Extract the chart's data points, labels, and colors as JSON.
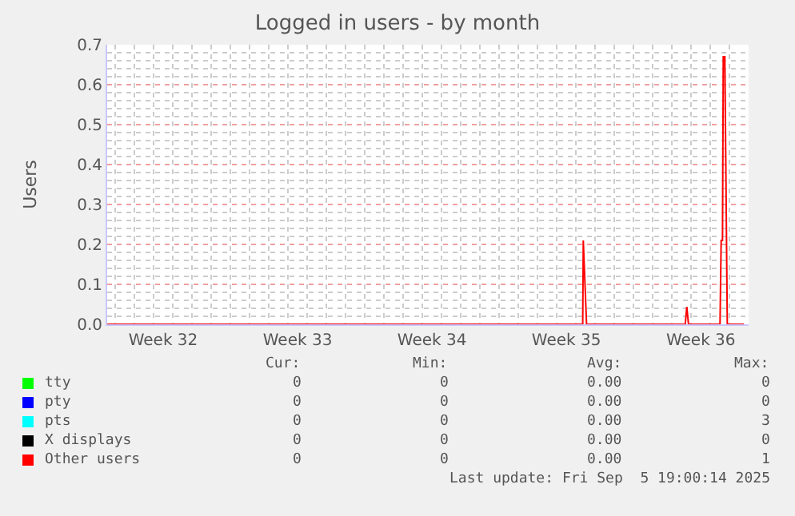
{
  "chart_data": {
    "type": "line",
    "title": "Logged in users - by month",
    "ylabel": "Users",
    "x": [
      "2025-08-03T14:00",
      "2025-08-28T08:24",
      "2025-08-28T09:07",
      "2025-08-28T13:12",
      "2025-09-02T16:34",
      "2025-09-02T18:29",
      "2025-09-02T20:38",
      "2025-09-04T12:00",
      "2025-09-04T13:26",
      "2025-09-04T15:07",
      "2025-09-04T16:05",
      "2025-09-04T18:00",
      "2025-09-04T21:07",
      "2025-09-05T18:00"
    ],
    "series": [
      {
        "name": "tty",
        "color": "#00ff00",
        "values": [
          null,
          null,
          null,
          null,
          null,
          null,
          null,
          null,
          null,
          null,
          null,
          null,
          null,
          null
        ]
      },
      {
        "name": "pty",
        "color": "#0000ff",
        "values": [
          null,
          null,
          null,
          null,
          null,
          null,
          null,
          null,
          null,
          null,
          null,
          null,
          null,
          null
        ]
      },
      {
        "name": "pts",
        "color": "#00ffff",
        "values": [
          null,
          null,
          null,
          null,
          null,
          null,
          null,
          null,
          null,
          null,
          null,
          null,
          null,
          null
        ]
      },
      {
        "name": "X displays",
        "color": "#000000",
        "values": [
          null,
          null,
          null,
          null,
          null,
          null,
          null,
          null,
          null,
          null,
          null,
          null,
          null,
          null
        ]
      },
      {
        "name": "Other users",
        "color": "#ff0000",
        "values": [
          0,
          0,
          0.21,
          0,
          0,
          0.044,
          0,
          0,
          0.21,
          0.21,
          0.67,
          0.67,
          0,
          0
        ]
      }
    ],
    "xlim": [
      "2025-08-03T14:00",
      "2025-09-05T23:45"
    ],
    "xticks": [
      {
        "value": "2025-08-06T12:00",
        "label": "Week 32"
      },
      {
        "value": "2025-08-13T12:00",
        "label": "Week 33"
      },
      {
        "value": "2025-08-20T12:00",
        "label": "Week 34"
      },
      {
        "value": "2025-08-27T12:00",
        "label": "Week 35"
      },
      {
        "value": "2025-09-03T12:00",
        "label": "Week 36"
      }
    ],
    "ylim": [
      0,
      0.7
    ],
    "yticks": [
      {
        "value": 0,
        "label": "0.0"
      },
      0.1,
      0.2,
      0.3,
      0.4,
      0.5,
      0.6,
      0.7
    ],
    "grid": true,
    "legend": "bottom left",
    "marker": "none",
    "line_style": "solid",
    "annotations": [
      "Cur:",
      "Min:",
      "Avg:",
      "Max:",
      "0",
      "0",
      "0.00",
      "0",
      "0",
      "0",
      "0.00",
      "0",
      "0",
      "0",
      "0.00",
      "3",
      "0",
      "0",
      "0.00",
      "0",
      "0",
      "0",
      "0.00",
      "1",
      "Last update: Fri Sep  5 19:00:14 2025"
    ]
  }
}
